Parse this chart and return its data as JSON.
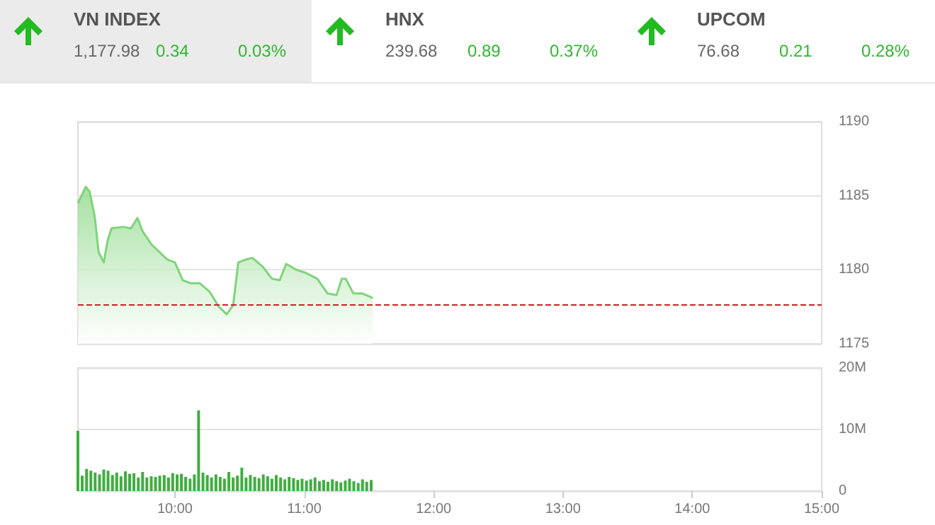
{
  "chart_data": [
    {
      "type": "other",
      "title": "VN INDEX",
      "annotations": [
        "1,177.98",
        "0.34",
        "0.03%"
      ]
    },
    {
      "type": "other",
      "title": "HNX",
      "annotations": [
        "239.68",
        "0.89",
        "0.37%"
      ]
    },
    {
      "type": "other",
      "title": "UPCOM",
      "annotations": [
        "76.68",
        "0.21",
        "0.28%"
      ]
    },
    {
      "type": "area",
      "color": "#7fd47a",
      "x": [
        9.25,
        9.31,
        9.34,
        9.38,
        9.41,
        9.45,
        9.48,
        9.51,
        9.6,
        9.66,
        9.71,
        9.75,
        9.82,
        9.94,
        10.0,
        10.06,
        10.12,
        10.19,
        10.27,
        10.34,
        10.4,
        10.45,
        10.49,
        10.55,
        10.6,
        10.68,
        10.75,
        10.81,
        10.86,
        10.94,
        11.01,
        11.1,
        11.18,
        11.25,
        11.29,
        11.32,
        11.38,
        11.45,
        11.53
      ],
      "values": [
        1184.5,
        1185.6,
        1185.3,
        1183.6,
        1181.2,
        1180.5,
        1182.0,
        1182.8,
        1182.9,
        1182.8,
        1183.5,
        1182.6,
        1181.7,
        1180.7,
        1180.5,
        1179.3,
        1179.1,
        1179.1,
        1178.5,
        1177.5,
        1177.0,
        1177.6,
        1180.5,
        1180.7,
        1180.8,
        1180.2,
        1179.4,
        1179.3,
        1180.4,
        1180.0,
        1179.8,
        1179.4,
        1178.4,
        1178.3,
        1179.4,
        1179.4,
        1178.4,
        1178.4,
        1178.1
      ],
      "xlim": [
        9.25,
        15
      ],
      "ylim": [
        1175,
        1190
      ],
      "yticks": [
        1175,
        1180,
        1185,
        1190
      ],
      "grid": "y",
      "tick_labels": "y",
      "ref_lines": [
        {
          "axis": "y",
          "value": 1177.64,
          "color": "#cc2222",
          "line_style": "dashed"
        }
      ]
    },
    {
      "type": "bar",
      "color": "#3fae3f",
      "x": [
        9.25,
        9.283,
        9.317,
        9.35,
        9.383,
        9.417,
        9.45,
        9.483,
        9.517,
        9.55,
        9.583,
        9.617,
        9.65,
        9.683,
        9.717,
        9.75,
        9.783,
        9.817,
        9.85,
        9.883,
        9.917,
        9.95,
        9.983,
        10.017,
        10.05,
        10.083,
        10.117,
        10.15,
        10.183,
        10.217,
        10.25,
        10.283,
        10.317,
        10.35,
        10.383,
        10.417,
        10.45,
        10.483,
        10.517,
        10.55,
        10.583,
        10.617,
        10.65,
        10.683,
        10.717,
        10.75,
        10.783,
        10.817,
        10.85,
        10.883,
        10.917,
        10.95,
        10.983,
        11.017,
        11.05,
        11.083,
        11.117,
        11.15,
        11.183,
        11.217,
        11.25,
        11.283,
        11.317,
        11.35,
        11.383,
        11.417,
        11.45,
        11.483,
        11.517
      ],
      "values": [
        9.8,
        2.5,
        3.6,
        3.3,
        3.0,
        2.7,
        3.5,
        3.3,
        2.6,
        3.0,
        2.4,
        3.2,
        2.8,
        2.9,
        2.2,
        3.1,
        2.2,
        2.4,
        2.3,
        2.5,
        2.6,
        2.2,
        2.9,
        2.7,
        2.8,
        2.3,
        2.0,
        2.7,
        13.1,
        3.0,
        2.6,
        2.2,
        2.7,
        2.3,
        2.0,
        3.1,
        2.2,
        2.5,
        3.8,
        2.2,
        2.6,
        2.3,
        2.1,
        2.7,
        2.4,
        2.0,
        2.6,
        2.2,
        1.9,
        2.3,
        2.1,
        1.8,
        2.0,
        1.7,
        1.9,
        2.2,
        1.6,
        1.8,
        1.5,
        1.9,
        1.6,
        1.4,
        1.7,
        2.0,
        1.6,
        1.3,
        1.9,
        1.5,
        1.8
      ],
      "xlim": [
        9.25,
        15
      ],
      "xticks": [
        {
          "value": 10,
          "label": "10:00"
        },
        {
          "value": 11,
          "label": "11:00"
        },
        {
          "value": 12,
          "label": "12:00"
        },
        {
          "value": 13,
          "label": "13:00"
        },
        {
          "value": 14,
          "label": "14:00"
        },
        {
          "value": 15,
          "label": "15:00"
        }
      ],
      "ylim": [
        0,
        20
      ],
      "yticks": [
        0,
        {
          "value": 10,
          "label": "10M"
        },
        {
          "value": 20,
          "label": "20M"
        }
      ],
      "grid": "y"
    }
  ]
}
